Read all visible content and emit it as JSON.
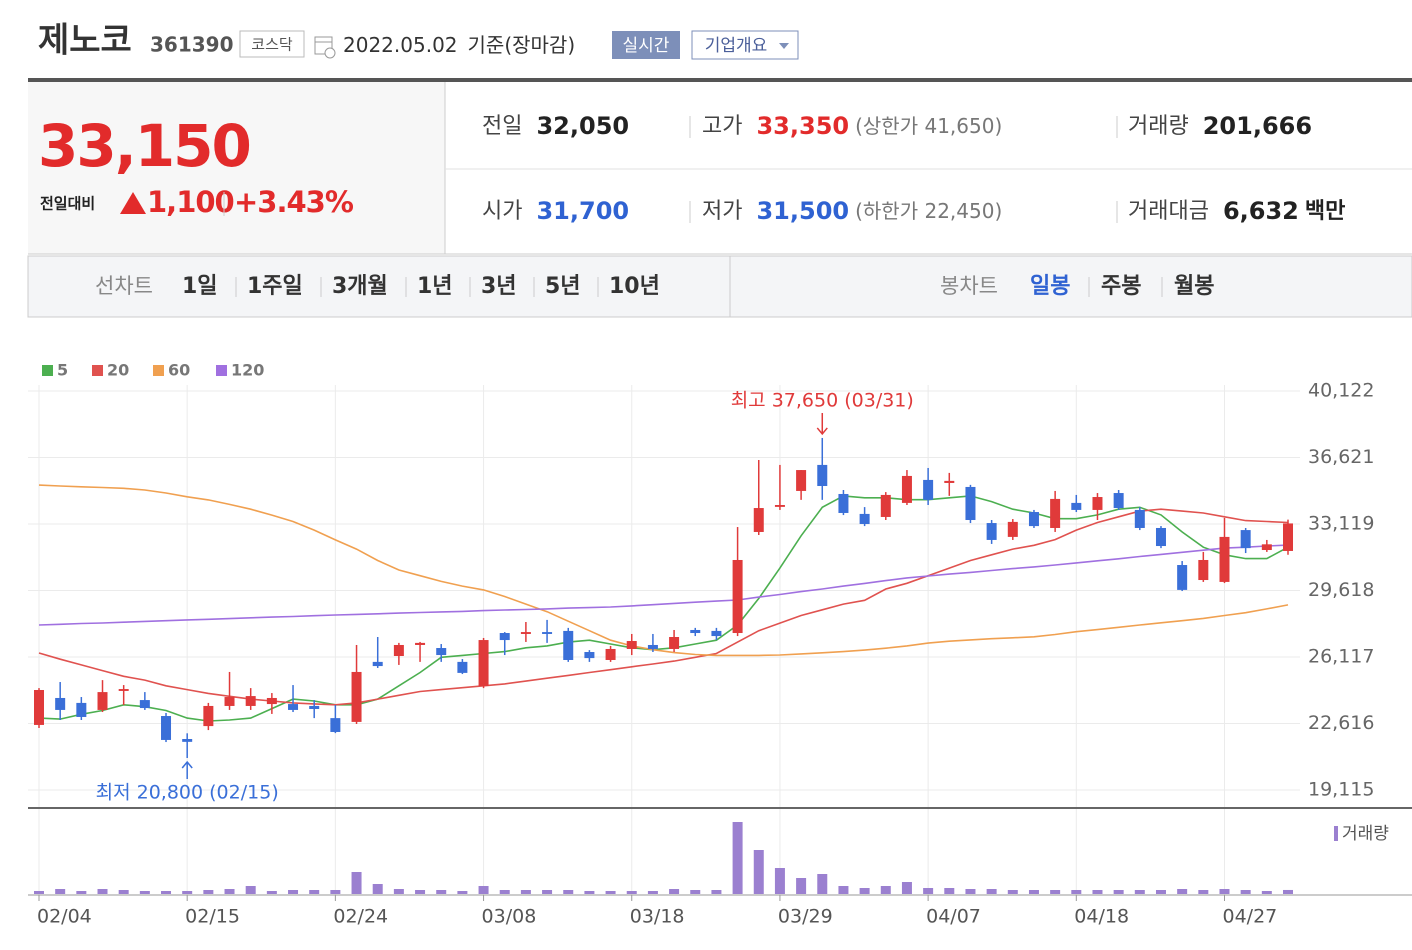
{
  "header": {
    "title": "제노코",
    "code": "361390",
    "market": "코스닥",
    "date": "2022.05.02",
    "basis": "기준(장마감)",
    "buttons": [
      "실시간",
      "기업개요"
    ]
  },
  "quote": {
    "price": "33,150",
    "change_label": "전일대비",
    "change": "1,100",
    "rate": "+3.43%",
    "color": "#e22b2b"
  },
  "info": [
    [
      {
        "label": "전일",
        "value": "32,050",
        "color": "#222222"
      },
      {
        "label": "고가",
        "value": "33,350",
        "note": "(상한가 41,650)",
        "color": "#e22b2b"
      },
      {
        "label": "거래량",
        "value": "201,666",
        "color": "#222222"
      }
    ],
    [
      {
        "label": "시가",
        "value": "31,700",
        "color": "#2f62d2"
      },
      {
        "label": "저가",
        "value": "31,500",
        "note": "(하한가 22,450)",
        "color": "#2f62d2"
      },
      {
        "label": "거래대금",
        "value": "6,632",
        "unit": "백만",
        "color": "#222222"
      }
    ]
  ],
  "tabs": {
    "line": {
      "label": "선차트",
      "items": [
        "1일",
        "1주일",
        "3개월",
        "1년",
        "3년",
        "5년",
        "10년"
      ]
    },
    "candle": {
      "label": "봉차트",
      "items": [
        "일봉",
        "주봉",
        "월봉"
      ],
      "selected_index": 0
    }
  },
  "chart_data": {
    "type": "candlestick",
    "categories": [
      "02/04",
      null,
      null,
      null,
      null,
      null,
      null,
      "02/15",
      null,
      null,
      null,
      null,
      null,
      null,
      "02/24",
      null,
      null,
      null,
      null,
      null,
      null,
      "03/08",
      null,
      null,
      null,
      null,
      null,
      null,
      "03/18",
      null,
      null,
      null,
      null,
      null,
      null,
      "03/29",
      null,
      null,
      null,
      null,
      null,
      null,
      "04/07",
      null,
      null,
      null,
      null,
      null,
      null,
      "04/18",
      null,
      null,
      null,
      null,
      null,
      null,
      "04/27",
      null,
      null,
      null
    ],
    "open": [
      22540,
      23960,
      23700,
      23330,
      24330,
      23850,
      23010,
      21800,
      22480,
      23540,
      23540,
      23640,
      23640,
      23540,
      22900,
      22700,
      25860,
      26170,
      26750,
      26590,
      25860,
      24590,
      27380,
      27330,
      27430,
      27490,
      26380,
      25960,
      26540,
      26750,
      26540,
      27540,
      27490,
      27380,
      32700,
      34020,
      34860,
      36230,
      34700,
      33650,
      33490,
      34230,
      35440,
      35280,
      35070,
      33170,
      32440,
      33750,
      32910,
      34230,
      33860,
      34750,
      33860,
      32910,
      30960,
      30170,
      30070,
      32800,
      31750,
      31700
    ],
    "high": [
      24480,
      24800,
      24010,
      24900,
      24640,
      24270,
      23170,
      22100,
      23700,
      25330,
      24480,
      24220,
      24640,
      23850,
      23590,
      26750,
      27170,
      26860,
      26910,
      26800,
      26010,
      27120,
      27430,
      27960,
      28070,
      27650,
      26480,
      26700,
      27330,
      27330,
      27540,
      27650,
      27650,
      32960,
      36490,
      36230,
      35960,
      37650,
      34910,
      34010,
      34800,
      35960,
      36070,
      35810,
      35180,
      33330,
      33380,
      33860,
      34860,
      34650,
      34750,
      34910,
      34010,
      33010,
      31170,
      31650,
      33440,
      32910,
      32280,
      33350
    ],
    "low": [
      22380,
      22800,
      22800,
      23220,
      23590,
      23330,
      21640,
      20800,
      22270,
      23330,
      23330,
      23120,
      23220,
      22900,
      22110,
      22590,
      25540,
      25700,
      25860,
      25860,
      25220,
      24480,
      26220,
      26910,
      26860,
      25860,
      25860,
      25860,
      26220,
      26380,
      26380,
      27220,
      27010,
      27220,
      32540,
      33860,
      34390,
      34390,
      33590,
      33010,
      33330,
      34120,
      34120,
      34600,
      33170,
      32070,
      32280,
      32910,
      32700,
      33750,
      33330,
      33860,
      32800,
      31850,
      29590,
      30070,
      30010,
      31590,
      31650,
      31500
    ],
    "close": [
      24380,
      23330,
      22960,
      24270,
      24430,
      23430,
      21750,
      21650,
      23540,
      24010,
      24060,
      23960,
      23330,
      23380,
      22170,
      25330,
      25640,
      26750,
      26860,
      26220,
      25280,
      27010,
      27010,
      27430,
      27330,
      25960,
      26060,
      26540,
      26960,
      26540,
      27170,
      27380,
      27220,
      31225,
      33960,
      34120,
      35960,
      35120,
      33700,
      33120,
      34650,
      35650,
      34390,
      35390,
      33330,
      32280,
      33230,
      33010,
      34440,
      33860,
      34540,
      33960,
      32910,
      31960,
      29650,
      31225,
      32440,
      31850,
      32050,
      33150
    ],
    "up_color": "#e03a3a",
    "down_color": "#3a6fd8",
    "ylim": [
      19115,
      40122
    ],
    "yticks": [
      {
        "value": 19115,
        "label": "19,115"
      },
      {
        "value": 22616,
        "label": "22,616"
      },
      {
        "value": 26117,
        "label": "26,117"
      },
      {
        "value": 29618,
        "label": "29,618"
      },
      {
        "value": 33119,
        "label": "33,119"
      },
      {
        "value": 36621,
        "label": "36,621"
      },
      {
        "value": 40122,
        "label": "40,122"
      }
    ],
    "grid": true,
    "ma": [
      {
        "name": "5",
        "color": "#4caf50",
        "values": [
          22900,
          22850,
          23100,
          23300,
          23600,
          23500,
          23300,
          22900,
          22750,
          22800,
          22900,
          23400,
          23900,
          23800,
          23600,
          23600,
          23900,
          24600,
          25300,
          26100,
          26200,
          26300,
          26400,
          26600,
          26700,
          26900,
          27000,
          26800,
          26600,
          26500,
          26600,
          26800,
          27000,
          27800,
          29200,
          30800,
          32500,
          34000,
          34600,
          34500,
          34500,
          34400,
          34400,
          34500,
          34600,
          34300,
          33900,
          33700,
          33400,
          33400,
          33600,
          33900,
          34000,
          33600,
          32700,
          31900,
          31500,
          31300,
          31300,
          31900
        ]
      },
      {
        "name": "20",
        "color": "#e0524f",
        "values": [
          26330,
          26000,
          25700,
          25400,
          25100,
          24900,
          24600,
          24400,
          24200,
          24050,
          23900,
          23800,
          23700,
          23650,
          23600,
          23700,
          23900,
          24100,
          24300,
          24400,
          24500,
          24600,
          24700,
          24850,
          25000,
          25150,
          25300,
          25450,
          25600,
          25750,
          25900,
          26100,
          26300,
          26900,
          27500,
          27900,
          28300,
          28600,
          28900,
          29100,
          29700,
          30000,
          30400,
          30800,
          31200,
          31500,
          31800,
          32000,
          32300,
          32800,
          33200,
          33500,
          33800,
          33900,
          33800,
          33700,
          33500,
          33300,
          33250,
          33200
        ]
      },
      {
        "name": "60",
        "color": "#f0a050",
        "values": [
          35170,
          35120,
          35080,
          35040,
          35000,
          34910,
          34750,
          34550,
          34390,
          34150,
          33900,
          33590,
          33250,
          32800,
          32280,
          31800,
          31200,
          30700,
          30400,
          30100,
          29850,
          29650,
          29300,
          28900,
          28500,
          28000,
          27500,
          27000,
          26700,
          26500,
          26350,
          26250,
          26200,
          26200,
          26200,
          26220,
          26280,
          26340,
          26400,
          26480,
          26580,
          26700,
          26850,
          26950,
          27020,
          27080,
          27130,
          27180,
          27300,
          27450,
          27560,
          27680,
          27800,
          27920,
          28030,
          28150,
          28300,
          28450,
          28650,
          28860
        ]
      },
      {
        "name": "120",
        "color": "#a070e0",
        "values": [
          27800,
          27840,
          27880,
          27910,
          27950,
          27990,
          28030,
          28070,
          28100,
          28140,
          28180,
          28220,
          28250,
          28290,
          28330,
          28360,
          28390,
          28430,
          28460,
          28490,
          28520,
          28560,
          28590,
          28620,
          28650,
          28690,
          28720,
          28750,
          28810,
          28870,
          28940,
          29000,
          29060,
          29120,
          29270,
          29410,
          29560,
          29700,
          29850,
          29990,
          30140,
          30280,
          30380,
          30480,
          30570,
          30670,
          30770,
          30860,
          30960,
          31070,
          31180,
          31290,
          31410,
          31520,
          31630,
          31740,
          31850,
          31900,
          31960,
          32010
        ]
      }
    ],
    "volume": {
      "label": "거래량",
      "color": "#9b80d0",
      "values": [
        150000,
        250000,
        150000,
        250000,
        200000,
        150000,
        150000,
        150000,
        200000,
        250000,
        400000,
        150000,
        200000,
        200000,
        200000,
        1100000,
        500000,
        250000,
        200000,
        200000,
        150000,
        400000,
        200000,
        200000,
        200000,
        200000,
        150000,
        150000,
        150000,
        150000,
        250000,
        200000,
        200000,
        3600000,
        2200000,
        1300000,
        800000,
        1000000,
        400000,
        300000,
        400000,
        600000,
        300000,
        300000,
        250000,
        250000,
        200000,
        200000,
        200000,
        200000,
        200000,
        200000,
        200000,
        200000,
        250000,
        200000,
        250000,
        200000,
        150000,
        201666
      ]
    },
    "annotations": [
      {
        "label": "최고 37,650 (03/31)",
        "value": 37650,
        "color": "#e03a3a"
      },
      {
        "label": "최저 20,800 (02/15)",
        "value": 20800,
        "color": "#3a6fd8"
      }
    ]
  }
}
